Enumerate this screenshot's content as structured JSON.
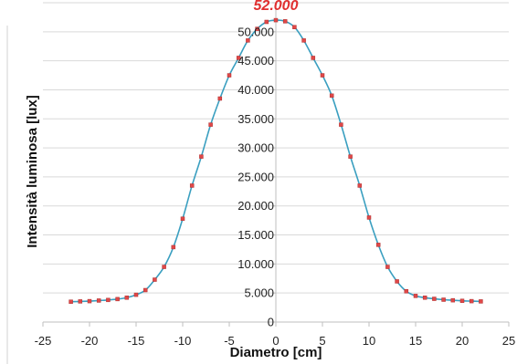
{
  "chart_data": {
    "type": "scatter",
    "title": "",
    "xlabel": "Diametro [cm]",
    "ylabel": "Intensità luminosa [lux]",
    "xlim": [
      -25,
      25
    ],
    "ylim": [
      0,
      55000
    ],
    "x_ticks": [
      -25,
      -20,
      -15,
      -10,
      -5,
      0,
      5,
      10,
      15,
      20,
      25
    ],
    "x_tick_labels": [
      "-25",
      "-20",
      "-15",
      "-10",
      "-5",
      "0",
      "5",
      "10",
      "15",
      "20",
      "25"
    ],
    "y_ticks": [
      0,
      5000,
      10000,
      15000,
      20000,
      25000,
      30000,
      35000,
      40000,
      45000,
      50000,
      55000
    ],
    "y_tick_labels": [
      "0",
      "5.000",
      "10.000",
      "15.000",
      "20.000",
      "25.000",
      "30.000",
      "35.000",
      "40.000",
      "45.000",
      "50.000",
      ""
    ],
    "grid": "horizontal",
    "legend": "none",
    "annotation": {
      "text": "52.000",
      "x": 0,
      "y": 52000
    },
    "series": [
      {
        "marker_color": "#e04848",
        "line_color": "#3a9fc0",
        "points": [
          {
            "x": -22,
            "y": 3500
          },
          {
            "x": -21,
            "y": 3550
          },
          {
            "x": -20,
            "y": 3600
          },
          {
            "x": -19,
            "y": 3700
          },
          {
            "x": -18,
            "y": 3800
          },
          {
            "x": -17,
            "y": 3950
          },
          {
            "x": -16,
            "y": 4200
          },
          {
            "x": -15,
            "y": 4700
          },
          {
            "x": -14,
            "y": 5500
          },
          {
            "x": -13,
            "y": 7300
          },
          {
            "x": -12,
            "y": 9500
          },
          {
            "x": -11,
            "y": 12900
          },
          {
            "x": -10,
            "y": 17800
          },
          {
            "x": -9,
            "y": 23500
          },
          {
            "x": -8,
            "y": 28500
          },
          {
            "x": -7,
            "y": 34000
          },
          {
            "x": -6,
            "y": 38500
          },
          {
            "x": -5,
            "y": 42500
          },
          {
            "x": -4,
            "y": 45500
          },
          {
            "x": -3,
            "y": 48500
          },
          {
            "x": -2,
            "y": 50500
          },
          {
            "x": -1,
            "y": 51700
          },
          {
            "x": 0,
            "y": 52000
          },
          {
            "x": 1,
            "y": 51800
          },
          {
            "x": 2,
            "y": 50800
          },
          {
            "x": 3,
            "y": 48500
          },
          {
            "x": 4,
            "y": 45500
          },
          {
            "x": 5,
            "y": 42500
          },
          {
            "x": 6,
            "y": 39000
          },
          {
            "x": 7,
            "y": 34000
          },
          {
            "x": 8,
            "y": 28500
          },
          {
            "x": 9,
            "y": 23500
          },
          {
            "x": 10,
            "y": 18000
          },
          {
            "x": 11,
            "y": 13300
          },
          {
            "x": 12,
            "y": 9500
          },
          {
            "x": 13,
            "y": 7000
          },
          {
            "x": 14,
            "y": 5300
          },
          {
            "x": 15,
            "y": 4500
          },
          {
            "x": 16,
            "y": 4200
          },
          {
            "x": 17,
            "y": 4000
          },
          {
            "x": 18,
            "y": 3850
          },
          {
            "x": 19,
            "y": 3750
          },
          {
            "x": 20,
            "y": 3650
          },
          {
            "x": 21,
            "y": 3600
          },
          {
            "x": 22,
            "y": 3550
          }
        ]
      }
    ]
  }
}
